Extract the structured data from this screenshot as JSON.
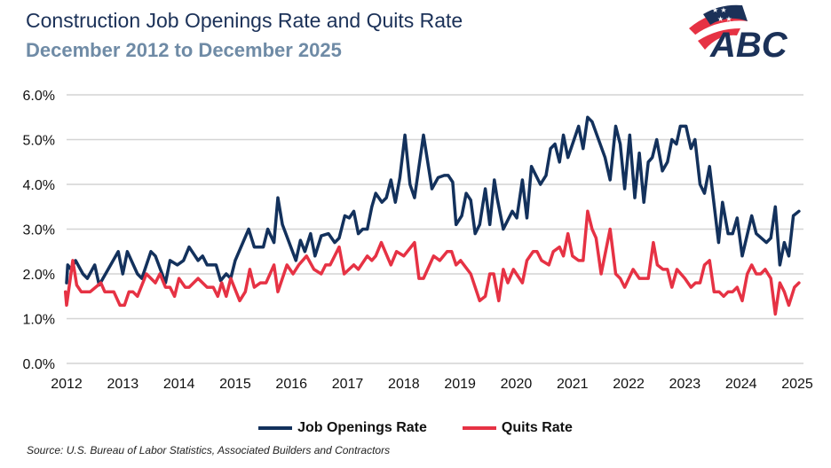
{
  "header": {
    "title": "Construction Job Openings Rate and Quits Rate",
    "subtitle": "December 2012 to December 2025",
    "logo_text": "ABC"
  },
  "source": "Source: U.S. Bureau of Labor Statistics, Associated Builders and Contractors",
  "chart_data": {
    "type": "line",
    "title": "Construction Job Openings Rate and Quits Rate",
    "subtitle": "December 2012 to December 2025",
    "xlabel": "",
    "ylabel": "",
    "xlim": [
      2012,
      2025
    ],
    "ylim": [
      0,
      6
    ],
    "x_ticks": [
      "2012",
      "2013",
      "2014",
      "2015",
      "2016",
      "2017",
      "2018",
      "2019",
      "2020",
      "2021",
      "2022",
      "2023",
      "2024",
      "2025"
    ],
    "y_ticks": [
      "0.0%",
      "1.0%",
      "2.0%",
      "3.0%",
      "4.0%",
      "5.0%",
      "6.0%"
    ],
    "grid": "horizontal",
    "legend": "bottom",
    "colors": {
      "job_openings": "#13315c",
      "quits": "#e63244"
    },
    "series": [
      {
        "name": "Job Openings Rate",
        "color": "#13315c",
        "points": [
          [
            2012.0,
            1.8
          ],
          [
            2012.02,
            2.2
          ],
          [
            2012.08,
            2.1
          ],
          [
            2012.16,
            2.3
          ],
          [
            2012.29,
            2.0
          ],
          [
            2012.37,
            1.9
          ],
          [
            2012.5,
            2.2
          ],
          [
            2012.58,
            1.75
          ],
          [
            2012.74,
            2.1
          ],
          [
            2012.92,
            2.5
          ],
          [
            2013.0,
            2.0
          ],
          [
            2013.08,
            2.5
          ],
          [
            2013.26,
            2.0
          ],
          [
            2013.34,
            1.9
          ],
          [
            2013.5,
            2.5
          ],
          [
            2013.58,
            2.4
          ],
          [
            2013.76,
            1.8
          ],
          [
            2013.84,
            2.3
          ],
          [
            2013.97,
            2.2
          ],
          [
            2014.08,
            2.3
          ],
          [
            2014.18,
            2.6
          ],
          [
            2014.34,
            2.3
          ],
          [
            2014.42,
            2.4
          ],
          [
            2014.5,
            2.2
          ],
          [
            2014.66,
            2.2
          ],
          [
            2014.74,
            1.85
          ],
          [
            2014.84,
            2.0
          ],
          [
            2014.92,
            1.9
          ],
          [
            2015.0,
            2.3
          ],
          [
            2015.24,
            3.0
          ],
          [
            2015.34,
            2.6
          ],
          [
            2015.5,
            2.6
          ],
          [
            2015.58,
            3.0
          ],
          [
            2015.69,
            2.7
          ],
          [
            2015.76,
            3.7
          ],
          [
            2015.84,
            3.1
          ],
          [
            2016.08,
            2.3
          ],
          [
            2016.16,
            2.75
          ],
          [
            2016.24,
            2.5
          ],
          [
            2016.34,
            2.9
          ],
          [
            2016.42,
            2.4
          ],
          [
            2016.53,
            2.85
          ],
          [
            2016.66,
            2.9
          ],
          [
            2016.77,
            2.7
          ],
          [
            2016.85,
            2.8
          ],
          [
            2016.95,
            3.3
          ],
          [
            2017.03,
            3.25
          ],
          [
            2017.11,
            3.4
          ],
          [
            2017.19,
            2.9
          ],
          [
            2017.27,
            3.0
          ],
          [
            2017.35,
            3.0
          ],
          [
            2017.43,
            3.5
          ],
          [
            2017.5,
            3.8
          ],
          [
            2017.61,
            3.6
          ],
          [
            2017.69,
            3.7
          ],
          [
            2017.77,
            4.1
          ],
          [
            2017.85,
            3.6
          ],
          [
            2017.93,
            4.15
          ],
          [
            2018.02,
            5.1
          ],
          [
            2018.11,
            4.0
          ],
          [
            2018.19,
            3.7
          ],
          [
            2018.35,
            5.1
          ],
          [
            2018.5,
            3.9
          ],
          [
            2018.61,
            4.15
          ],
          [
            2018.72,
            4.2
          ],
          [
            2018.79,
            4.2
          ],
          [
            2018.87,
            4.05
          ],
          [
            2018.93,
            3.1
          ],
          [
            2019.03,
            3.3
          ],
          [
            2019.11,
            3.8
          ],
          [
            2019.19,
            3.65
          ],
          [
            2019.27,
            2.9
          ],
          [
            2019.35,
            3.1
          ],
          [
            2019.45,
            3.9
          ],
          [
            2019.53,
            3.1
          ],
          [
            2019.61,
            4.1
          ],
          [
            2019.66,
            3.7
          ],
          [
            2019.77,
            3.0
          ],
          [
            2019.93,
            3.4
          ],
          [
            2020.01,
            3.25
          ],
          [
            2020.11,
            4.1
          ],
          [
            2020.19,
            3.25
          ],
          [
            2020.27,
            4.4
          ],
          [
            2020.43,
            4.0
          ],
          [
            2020.53,
            4.2
          ],
          [
            2020.61,
            4.8
          ],
          [
            2020.69,
            4.9
          ],
          [
            2020.77,
            4.5
          ],
          [
            2020.84,
            5.1
          ],
          [
            2020.92,
            4.6
          ],
          [
            2021.11,
            5.3
          ],
          [
            2021.19,
            4.8
          ],
          [
            2021.27,
            5.5
          ],
          [
            2021.35,
            5.4
          ],
          [
            2021.58,
            4.6
          ],
          [
            2021.67,
            4.1
          ],
          [
            2021.77,
            5.3
          ],
          [
            2021.85,
            4.9
          ],
          [
            2021.93,
            3.9
          ],
          [
            2022.02,
            5.1
          ],
          [
            2022.11,
            3.7
          ],
          [
            2022.19,
            4.7
          ],
          [
            2022.27,
            3.6
          ],
          [
            2022.35,
            4.5
          ],
          [
            2022.42,
            4.6
          ],
          [
            2022.5,
            5.0
          ],
          [
            2022.6,
            4.3
          ],
          [
            2022.69,
            4.5
          ],
          [
            2022.77,
            5.0
          ],
          [
            2022.85,
            4.9
          ],
          [
            2022.92,
            5.3
          ],
          [
            2023.02,
            5.3
          ],
          [
            2023.11,
            4.8
          ],
          [
            2023.18,
            5.0
          ],
          [
            2023.27,
            4.0
          ],
          [
            2023.35,
            3.8
          ],
          [
            2023.44,
            4.4
          ],
          [
            2023.6,
            2.7
          ],
          [
            2023.67,
            3.6
          ],
          [
            2023.77,
            2.9
          ],
          [
            2023.85,
            2.9
          ],
          [
            2023.93,
            3.25
          ],
          [
            2024.02,
            2.4
          ],
          [
            2024.19,
            3.3
          ],
          [
            2024.27,
            2.9
          ],
          [
            2024.45,
            2.7
          ],
          [
            2024.53,
            2.8
          ],
          [
            2024.61,
            3.5
          ],
          [
            2024.69,
            2.2
          ],
          [
            2024.77,
            2.7
          ],
          [
            2024.85,
            2.4
          ],
          [
            2024.93,
            3.3
          ],
          [
            2025.03,
            3.4
          ]
        ]
      },
      {
        "name": "Quits Rate",
        "color": "#e63244",
        "points": [
          [
            2011.98,
            1.6
          ],
          [
            2012.0,
            1.3
          ],
          [
            2012.11,
            2.3
          ],
          [
            2012.18,
            1.75
          ],
          [
            2012.26,
            1.6
          ],
          [
            2012.42,
            1.6
          ],
          [
            2012.61,
            1.8
          ],
          [
            2012.68,
            1.6
          ],
          [
            2012.84,
            1.6
          ],
          [
            2012.95,
            1.3
          ],
          [
            2013.03,
            1.3
          ],
          [
            2013.11,
            1.6
          ],
          [
            2013.18,
            1.6
          ],
          [
            2013.26,
            1.5
          ],
          [
            2013.42,
            2.0
          ],
          [
            2013.58,
            1.8
          ],
          [
            2013.66,
            2.0
          ],
          [
            2013.76,
            1.7
          ],
          [
            2013.84,
            1.7
          ],
          [
            2013.92,
            1.5
          ],
          [
            2014.0,
            1.9
          ],
          [
            2014.11,
            1.7
          ],
          [
            2014.18,
            1.7
          ],
          [
            2014.34,
            1.9
          ],
          [
            2014.5,
            1.7
          ],
          [
            2014.61,
            1.7
          ],
          [
            2014.69,
            1.5
          ],
          [
            2014.76,
            1.8
          ],
          [
            2014.84,
            1.5
          ],
          [
            2014.92,
            1.9
          ],
          [
            2015.08,
            1.4
          ],
          [
            2015.18,
            1.6
          ],
          [
            2015.26,
            2.1
          ],
          [
            2015.34,
            1.7
          ],
          [
            2015.45,
            1.8
          ],
          [
            2015.55,
            1.8
          ],
          [
            2015.69,
            2.2
          ],
          [
            2015.76,
            1.6
          ],
          [
            2015.92,
            2.2
          ],
          [
            2016.03,
            2.0
          ],
          [
            2016.13,
            2.2
          ],
          [
            2016.27,
            2.4
          ],
          [
            2016.4,
            2.1
          ],
          [
            2016.53,
            2.0
          ],
          [
            2016.61,
            2.2
          ],
          [
            2016.69,
            2.2
          ],
          [
            2016.85,
            2.6
          ],
          [
            2016.94,
            2.0
          ],
          [
            2017.11,
            2.2
          ],
          [
            2017.19,
            2.1
          ],
          [
            2017.35,
            2.4
          ],
          [
            2017.43,
            2.3
          ],
          [
            2017.5,
            2.4
          ],
          [
            2017.6,
            2.7
          ],
          [
            2017.77,
            2.2
          ],
          [
            2017.87,
            2.5
          ],
          [
            2018.0,
            2.4
          ],
          [
            2018.19,
            2.7
          ],
          [
            2018.27,
            1.9
          ],
          [
            2018.35,
            1.9
          ],
          [
            2018.53,
            2.4
          ],
          [
            2018.64,
            2.3
          ],
          [
            2018.77,
            2.5
          ],
          [
            2018.85,
            2.5
          ],
          [
            2018.93,
            2.2
          ],
          [
            2019.01,
            2.3
          ],
          [
            2019.19,
            2.0
          ],
          [
            2019.35,
            1.4
          ],
          [
            2019.45,
            1.5
          ],
          [
            2019.53,
            2.0
          ],
          [
            2019.6,
            2.0
          ],
          [
            2019.69,
            1.4
          ],
          [
            2019.77,
            2.1
          ],
          [
            2019.85,
            1.8
          ],
          [
            2019.95,
            2.1
          ],
          [
            2020.11,
            1.8
          ],
          [
            2020.19,
            2.3
          ],
          [
            2020.3,
            2.5
          ],
          [
            2020.37,
            2.5
          ],
          [
            2020.45,
            2.3
          ],
          [
            2020.58,
            2.2
          ],
          [
            2020.66,
            2.5
          ],
          [
            2020.77,
            2.6
          ],
          [
            2020.84,
            2.4
          ],
          [
            2020.92,
            2.9
          ],
          [
            2021.0,
            2.4
          ],
          [
            2021.11,
            2.3
          ],
          [
            2021.19,
            2.3
          ],
          [
            2021.27,
            3.4
          ],
          [
            2021.35,
            3.0
          ],
          [
            2021.42,
            2.8
          ],
          [
            2021.51,
            2.0
          ],
          [
            2021.67,
            3.0
          ],
          [
            2021.77,
            2.0
          ],
          [
            2021.85,
            1.9
          ],
          [
            2021.93,
            1.7
          ],
          [
            2022.08,
            2.1
          ],
          [
            2022.19,
            1.9
          ],
          [
            2022.35,
            1.9
          ],
          [
            2022.44,
            2.7
          ],
          [
            2022.51,
            2.2
          ],
          [
            2022.61,
            2.1
          ],
          [
            2022.69,
            2.1
          ],
          [
            2022.77,
            1.7
          ],
          [
            2022.86,
            2.1
          ],
          [
            2023.0,
            1.9
          ],
          [
            2023.11,
            1.7
          ],
          [
            2023.19,
            1.8
          ],
          [
            2023.27,
            1.8
          ],
          [
            2023.35,
            2.2
          ],
          [
            2023.44,
            2.3
          ],
          [
            2023.52,
            1.6
          ],
          [
            2023.61,
            1.6
          ],
          [
            2023.69,
            1.5
          ],
          [
            2023.77,
            1.6
          ],
          [
            2023.85,
            1.6
          ],
          [
            2023.93,
            1.7
          ],
          [
            2024.02,
            1.4
          ],
          [
            2024.11,
            2.0
          ],
          [
            2024.19,
            2.2
          ],
          [
            2024.27,
            2.0
          ],
          [
            2024.35,
            2.0
          ],
          [
            2024.43,
            2.1
          ],
          [
            2024.53,
            1.9
          ],
          [
            2024.61,
            1.1
          ],
          [
            2024.69,
            1.8
          ],
          [
            2024.77,
            1.6
          ],
          [
            2024.85,
            1.3
          ],
          [
            2024.95,
            1.7
          ],
          [
            2025.03,
            1.8
          ]
        ]
      }
    ]
  }
}
